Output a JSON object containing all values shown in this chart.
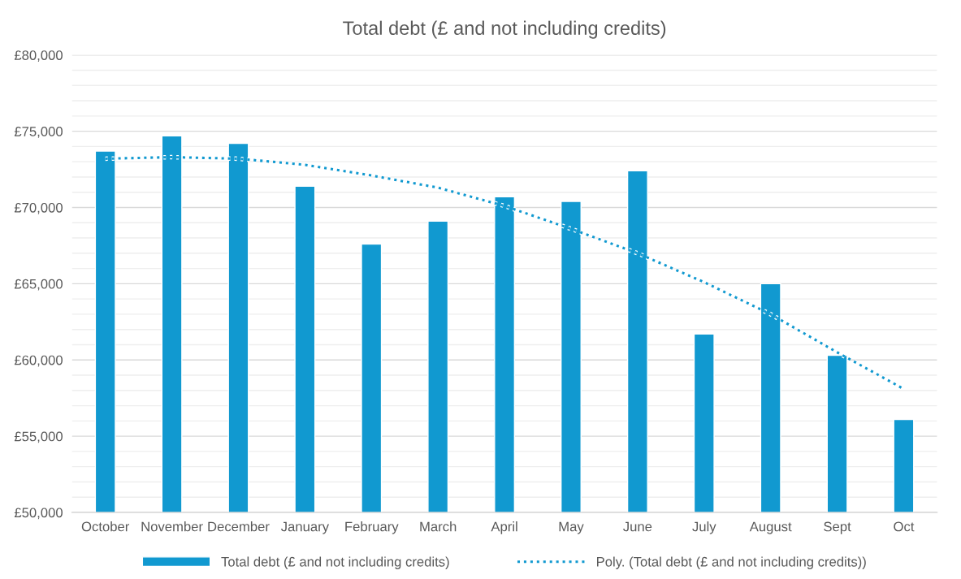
{
  "chart_data": {
    "type": "bar",
    "title": "Total debt (£ and not including credits)",
    "categories": [
      "October",
      "November",
      "December",
      "January",
      "February",
      "March",
      "April",
      "May",
      "June",
      "July",
      "August",
      "Sept",
      "Oct"
    ],
    "series": [
      {
        "name": "Total debt (£ and not including credits)",
        "color": "#1199d0",
        "values": [
          73700,
          74700,
          74200,
          71400,
          67600,
          69100,
          70700,
          70400,
          72400,
          61700,
          65000,
          60300,
          56100
        ]
      },
      {
        "name": "Poly. (Total debt (£ and not including credits))",
        "type": "line",
        "color": "#1199d0",
        "line_style": "dotted",
        "marker": "none",
        "values": [
          73200,
          73300,
          73200,
          72800,
          72100,
          71300,
          70100,
          68600,
          67000,
          65100,
          63000,
          60500,
          58100
        ]
      }
    ],
    "ylim": [
      50000,
      80000
    ],
    "yticks": [
      {
        "value": 50000,
        "label": "£50,000"
      },
      {
        "value": 51000,
        "label": null
      },
      {
        "value": 52000,
        "label": null
      },
      {
        "value": 53000,
        "label": null
      },
      {
        "value": 54000,
        "label": null
      },
      {
        "value": 55000,
        "label": "£55,000"
      },
      {
        "value": 56000,
        "label": null
      },
      {
        "value": 57000,
        "label": null
      },
      {
        "value": 58000,
        "label": null
      },
      {
        "value": 59000,
        "label": null
      },
      {
        "value": 60000,
        "label": "£60,000"
      },
      {
        "value": 61000,
        "label": null
      },
      {
        "value": 62000,
        "label": null
      },
      {
        "value": 63000,
        "label": null
      },
      {
        "value": 64000,
        "label": null
      },
      {
        "value": 65000,
        "label": "£65,000"
      },
      {
        "value": 66000,
        "label": null
      },
      {
        "value": 67000,
        "label": null
      },
      {
        "value": 68000,
        "label": null
      },
      {
        "value": 69000,
        "label": null
      },
      {
        "value": 70000,
        "label": "£70,000"
      },
      {
        "value": 71000,
        "label": null
      },
      {
        "value": 72000,
        "label": null
      },
      {
        "value": 73000,
        "label": null
      },
      {
        "value": 74000,
        "label": null
      },
      {
        "value": 75000,
        "label": "£75,000"
      },
      {
        "value": 76000,
        "label": null
      },
      {
        "value": 77000,
        "label": null
      },
      {
        "value": 78000,
        "label": null
      },
      {
        "value": 79000,
        "label": null
      },
      {
        "value": 80000,
        "label": "£80,000"
      }
    ],
    "grid": "y",
    "legend": "bottom"
  }
}
